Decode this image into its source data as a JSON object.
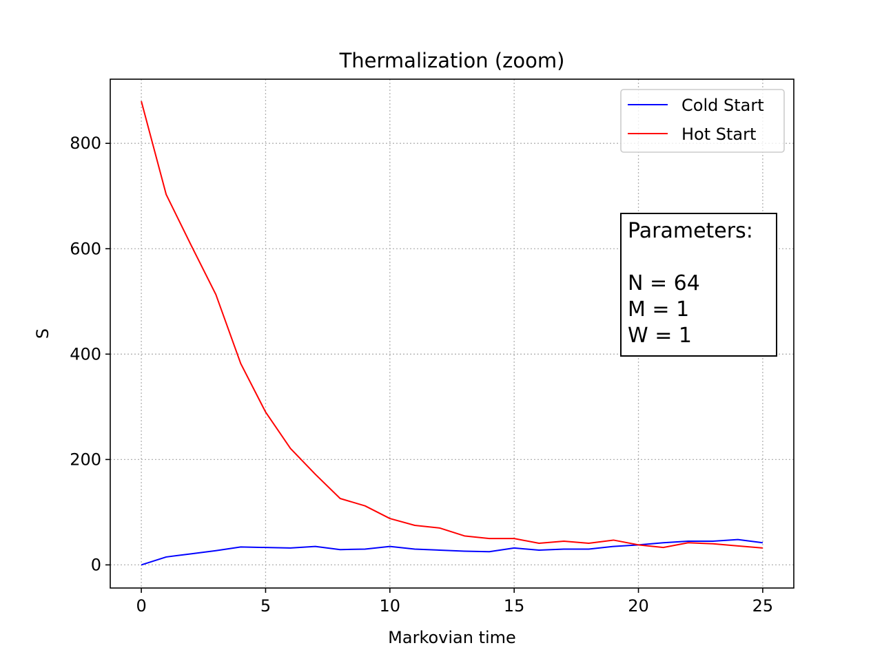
{
  "chart_data": {
    "type": "line",
    "title": "Thermalization (zoom)",
    "xlabel": "Markovian time",
    "ylabel": "S",
    "xlim": [
      -1.25,
      26.25
    ],
    "ylim": [
      -43.9,
      921.8
    ],
    "xticks": [
      0,
      5,
      10,
      15,
      20,
      25
    ],
    "yticks": [
      0,
      200,
      400,
      600,
      800
    ],
    "grid": true,
    "legend_position": "top-right",
    "x": [
      0,
      1,
      2,
      3,
      4,
      5,
      6,
      7,
      8,
      9,
      10,
      11,
      12,
      13,
      14,
      15,
      16,
      17,
      18,
      19,
      20,
      21,
      22,
      23,
      24,
      25
    ],
    "series": [
      {
        "name": "Cold Start",
        "color": "#0000ff",
        "values": [
          0,
          15,
          21,
          27,
          34,
          33,
          32,
          35,
          29,
          30,
          35,
          30,
          28,
          26,
          25,
          32,
          28,
          30,
          30,
          35,
          38,
          42,
          45,
          45,
          48,
          42
        ]
      },
      {
        "name": "Hot Start",
        "color": "#ff0000",
        "values": [
          880,
          703,
          607,
          513,
          382,
          290,
          221,
          172,
          126,
          112,
          88,
          75,
          70,
          55,
          50,
          50,
          41,
          45,
          41,
          47,
          38,
          33,
          42,
          40,
          36,
          32
        ]
      }
    ],
    "annotation": {
      "lines": [
        "Parameters:",
        "",
        "N = 64",
        "M = 1",
        "W = 1"
      ]
    }
  }
}
